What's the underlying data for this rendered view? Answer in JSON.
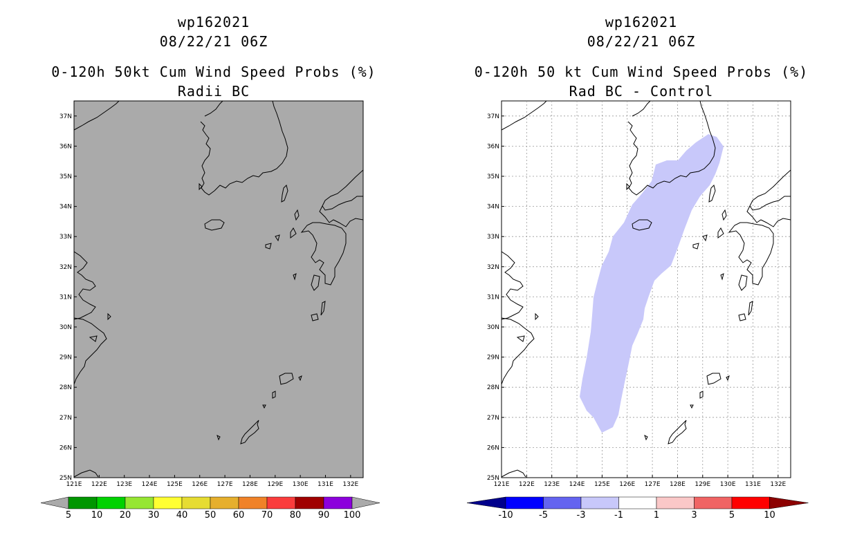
{
  "left": {
    "storm_id": "wp162021",
    "datetime": "08/22/21 06Z",
    "title": "0-120h 50kt Cum Wind Speed Probs (%)",
    "subtitle": "Radii BC",
    "map_fill": "#aaaaaa",
    "colorbar": {
      "labels": [
        "5",
        "10",
        "20",
        "30",
        "40",
        "50",
        "60",
        "70",
        "80",
        "90",
        "100"
      ],
      "colors": [
        "#009600",
        "#00d200",
        "#96e632",
        "#ffff32",
        "#e6dc32",
        "#e6af2d",
        "#f08228",
        "#fa3c3c",
        "#a00000",
        "#8c00dc"
      ],
      "end_color": "#aaaaaa"
    }
  },
  "right": {
    "storm_id": "wp162021",
    "datetime": "08/22/21 06Z",
    "title": "0-120h 50 kt Cum Wind Speed Probs (%)",
    "subtitle": "Rad BC - Control",
    "map_fill": "#ffffff",
    "shade_color": "#c8c8fa",
    "colorbar": {
      "labels": [
        "-10",
        "-5",
        "-3",
        "-1",
        "1",
        "3",
        "5",
        "10"
      ],
      "colors": [
        "#0000ff",
        "#6464f0",
        "#c8c8fa",
        "#ffffff",
        "#fac8c8",
        "#f06464",
        "#ff0000"
      ],
      "low_color": "#00008c",
      "high_color": "#8c0000"
    }
  },
  "axes": {
    "lon_labels": [
      "121E",
      "122E",
      "123E",
      "124E",
      "125E",
      "126E",
      "127E",
      "128E",
      "129E",
      "130E",
      "131E",
      "132E"
    ],
    "lat_labels": [
      "25N",
      "26N",
      "27N",
      "28N",
      "29N",
      "30N",
      "31N",
      "32N",
      "33N",
      "34N",
      "35N",
      "36N",
      "37N"
    ]
  }
}
